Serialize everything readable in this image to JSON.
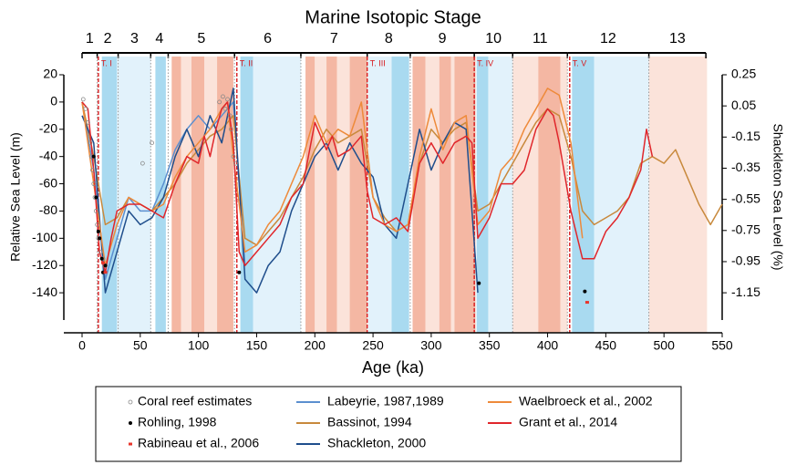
{
  "chart_data": {
    "type": "line",
    "title": "Marine Isotopic Stage",
    "x_label": "Age (ka)",
    "y_label": "Relative Sea Level (m)",
    "y2_label": "Shackleton Sea Level (%)",
    "xlim": [
      0,
      550
    ],
    "xticks": [
      0,
      50,
      100,
      150,
      200,
      250,
      300,
      350,
      400,
      450,
      500,
      550
    ],
    "ylim": [
      -160,
      20
    ],
    "yticks": [
      20,
      0,
      -20,
      -40,
      -60,
      -80,
      -100,
      -120,
      -140
    ],
    "y2lim": [
      -1.325,
      0.25
    ],
    "y2ticks": [
      0.25,
      0.05,
      -0.15,
      -0.35,
      -0.55,
      -0.75,
      -0.95,
      -1.15
    ],
    "stages": [
      {
        "label": "1",
        "start": 0,
        "end": 13
      },
      {
        "label": "2",
        "start": 13,
        "end": 31
      },
      {
        "label": "3",
        "start": 31,
        "end": 59
      },
      {
        "label": "4",
        "start": 59,
        "end": 74
      },
      {
        "label": "5",
        "start": 74,
        "end": 131
      },
      {
        "label": "6",
        "start": 131,
        "end": 188
      },
      {
        "label": "7",
        "start": 188,
        "end": 245
      },
      {
        "label": "8",
        "start": 245,
        "end": 282
      },
      {
        "label": "9",
        "start": 282,
        "end": 337
      },
      {
        "label": "10",
        "start": 337,
        "end": 370
      },
      {
        "label": "11",
        "start": 370,
        "end": 417
      },
      {
        "label": "12",
        "start": 417,
        "end": 487
      },
      {
        "label": "13",
        "start": 487,
        "end": 536
      }
    ],
    "terminations": [
      {
        "label": "T. I",
        "x": 14
      },
      {
        "label": "T. II",
        "x": 133
      },
      {
        "label": "T. III",
        "x": 245
      },
      {
        "label": "T. IV",
        "x": 337
      },
      {
        "label": "T. V",
        "x": 419
      }
    ],
    "bands": [
      {
        "start": 17,
        "end": 30,
        "color": "#a9daf0"
      },
      {
        "start": 30,
        "end": 59,
        "color": "#e2f2fb"
      },
      {
        "start": 63,
        "end": 72,
        "color": "#a9daf0"
      },
      {
        "start": 77,
        "end": 85,
        "color": "#f4b7a3"
      },
      {
        "start": 85,
        "end": 94,
        "color": "#fbe3da"
      },
      {
        "start": 94,
        "end": 105,
        "color": "#f4b7a3"
      },
      {
        "start": 105,
        "end": 116,
        "color": "#fbe3da"
      },
      {
        "start": 116,
        "end": 130,
        "color": "#f4b7a3"
      },
      {
        "start": 136,
        "end": 147,
        "color": "#a9daf0"
      },
      {
        "start": 147,
        "end": 188,
        "color": "#e2f2fb"
      },
      {
        "start": 192,
        "end": 200,
        "color": "#f4b7a3"
      },
      {
        "start": 200,
        "end": 210,
        "color": "#fbe3da"
      },
      {
        "start": 210,
        "end": 219,
        "color": "#f4b7a3"
      },
      {
        "start": 219,
        "end": 230,
        "color": "#fbe3da"
      },
      {
        "start": 230,
        "end": 245,
        "color": "#f4b7a3"
      },
      {
        "start": 246,
        "end": 266,
        "color": "#e2f2fb"
      },
      {
        "start": 266,
        "end": 281,
        "color": "#a9daf0"
      },
      {
        "start": 284,
        "end": 295,
        "color": "#f4b7a3"
      },
      {
        "start": 295,
        "end": 307,
        "color": "#fbe3da"
      },
      {
        "start": 307,
        "end": 317,
        "color": "#f4b7a3"
      },
      {
        "start": 317,
        "end": 320,
        "color": "#fbe3da"
      },
      {
        "start": 320,
        "end": 338,
        "color": "#f4b7a3"
      },
      {
        "start": 339,
        "end": 349,
        "color": "#a9daf0"
      },
      {
        "start": 349,
        "end": 370,
        "color": "#e2f2fb"
      },
      {
        "start": 370,
        "end": 392,
        "color": "#fbe3da"
      },
      {
        "start": 392,
        "end": 411,
        "color": "#f4b7a3"
      },
      {
        "start": 411,
        "end": 417,
        "color": "#fbe3da"
      },
      {
        "start": 421,
        "end": 440,
        "color": "#a9daf0"
      },
      {
        "start": 440,
        "end": 487,
        "color": "#e2f2fb"
      },
      {
        "start": 487,
        "end": 537,
        "color": "#fbe3da"
      }
    ],
    "series": [
      {
        "name": "Coral reef estimates",
        "type": "scatter",
        "marker": "circle",
        "color": "#888888",
        "x": [
          1,
          3,
          5,
          7,
          8,
          9,
          10,
          11,
          12,
          13,
          14,
          16,
          18,
          20,
          52,
          60,
          118,
          121,
          123,
          125,
          127,
          128,
          130,
          132
        ],
        "values": [
          2,
          -5,
          -15,
          -30,
          -40,
          -50,
          -60,
          -70,
          -80,
          -90,
          -100,
          -110,
          -115,
          -120,
          -45,
          -30,
          0,
          4,
          -5,
          2,
          -10,
          -20,
          -40,
          -45
        ]
      },
      {
        "name": "Rohling, 1998",
        "type": "scatter",
        "marker": "dot",
        "color": "#000000",
        "x": [
          10,
          12,
          14,
          15,
          17,
          18,
          20,
          135,
          341,
          432
        ],
        "values": [
          -40,
          -70,
          -95,
          -100,
          -115,
          -125,
          -120,
          -125,
          -133,
          -139
        ]
      },
      {
        "name": "Rabineau et al., 2006",
        "type": "scatter",
        "marker": "square",
        "color": "#e8352b",
        "x": [
          18,
          20,
          434
        ],
        "values": [
          -118,
          -125,
          -147
        ]
      },
      {
        "name": "Labeyrie, 1987,1989",
        "type": "line",
        "color": "#5b8fcf",
        "x": [
          0,
          10,
          20,
          30,
          40,
          50,
          60,
          70,
          80,
          90,
          100,
          110,
          120,
          130,
          140
        ],
        "values": [
          0,
          -50,
          -130,
          -100,
          -70,
          -80,
          -80,
          -60,
          -35,
          -20,
          -10,
          -20,
          -10,
          0,
          -120
        ]
      },
      {
        "name": "Bassinot, 1994",
        "type": "line",
        "color": "#c8893c",
        "x": [
          0,
          10,
          20,
          30,
          40,
          50,
          60,
          70,
          80,
          90,
          100,
          110,
          120,
          130,
          140,
          150,
          160,
          170,
          180,
          190,
          200,
          210,
          220,
          230,
          240,
          250,
          260,
          270,
          280,
          290,
          300,
          310,
          320,
          330,
          340,
          350,
          360,
          370,
          380,
          390,
          400,
          410,
          420,
          430,
          440,
          450,
          460,
          470,
          480,
          490,
          500,
          510,
          520,
          530,
          540,
          550
        ],
        "values": [
          0,
          -40,
          -90,
          -85,
          -70,
          -75,
          -80,
          -70,
          -60,
          -45,
          -35,
          -25,
          -20,
          -10,
          -100,
          -105,
          -95,
          -85,
          -70,
          -55,
          -35,
          -20,
          -30,
          -25,
          -20,
          -70,
          -85,
          -95,
          -90,
          -45,
          -20,
          -30,
          -20,
          -15,
          -80,
          -75,
          -60,
          -45,
          -30,
          -15,
          -5,
          -10,
          -40,
          -80,
          -90,
          -85,
          -80,
          -70,
          -45,
          -40,
          -45,
          -35,
          -55,
          -75,
          -90,
          -75
        ]
      },
      {
        "name": "Shackleton, 2000",
        "type": "line",
        "color": "#1f4e8c",
        "x": [
          0,
          10,
          20,
          30,
          40,
          50,
          60,
          70,
          80,
          90,
          100,
          110,
          120,
          130,
          140,
          150,
          160,
          170,
          180,
          190,
          200,
          210,
          220,
          230,
          240,
          250,
          260,
          270,
          280,
          290,
          300,
          310,
          320,
          330,
          340
        ],
        "values": [
          -10,
          -30,
          -140,
          -110,
          -80,
          -90,
          -85,
          -70,
          -40,
          -20,
          -40,
          -10,
          -30,
          10,
          -130,
          -140,
          -120,
          -110,
          -80,
          -60,
          -40,
          -30,
          -50,
          -30,
          -45,
          -55,
          -90,
          -100,
          -60,
          -20,
          -50,
          -30,
          -15,
          -20,
          -140
        ]
      },
      {
        "name": "Waelbroeck et al., 2002",
        "type": "line",
        "color": "#ee8a3a",
        "x": [
          0,
          10,
          20,
          30,
          40,
          50,
          60,
          70,
          80,
          90,
          100,
          110,
          120,
          125,
          130,
          140,
          150,
          160,
          170,
          180,
          190,
          200,
          210,
          220,
          230,
          240,
          250,
          260,
          270,
          280,
          290,
          300,
          310,
          320,
          330,
          340,
          350,
          360,
          370,
          380,
          390,
          400,
          410,
          420,
          430
        ],
        "values": [
          0,
          -60,
          -120,
          -90,
          -70,
          -75,
          -80,
          -75,
          -55,
          -40,
          -30,
          -20,
          -5,
          0,
          -40,
          -110,
          -105,
          -90,
          -80,
          -60,
          -40,
          -10,
          -30,
          -20,
          -25,
          0,
          -70,
          -90,
          -95,
          -90,
          -40,
          -5,
          -35,
          -15,
          -10,
          -90,
          -80,
          -50,
          -40,
          -20,
          -5,
          10,
          5,
          -30,
          -100
        ]
      },
      {
        "name": "Grant et al., 2014",
        "type": "line",
        "color": "#e0262b",
        "x": [
          0,
          5,
          10,
          15,
          20,
          25,
          30,
          40,
          50,
          60,
          70,
          80,
          90,
          100,
          105,
          110,
          115,
          120,
          125,
          130,
          135,
          140,
          150,
          160,
          170,
          180,
          190,
          200,
          210,
          215,
          220,
          230,
          240,
          245,
          250,
          260,
          270,
          280,
          290,
          300,
          310,
          320,
          330,
          335,
          340,
          350,
          360,
          370,
          380,
          390,
          400,
          405,
          410,
          420,
          430,
          440,
          450,
          460,
          470,
          480,
          485,
          490
        ],
        "values": [
          0,
          -5,
          -50,
          -110,
          -125,
          -100,
          -80,
          -75,
          -75,
          -80,
          -85,
          -60,
          -40,
          -45,
          -25,
          -40,
          -20,
          -5,
          0,
          -30,
          -110,
          -120,
          -110,
          -100,
          -90,
          -70,
          -60,
          -15,
          -35,
          -25,
          -40,
          -35,
          -25,
          -65,
          -85,
          -90,
          -85,
          -95,
          -45,
          -30,
          -45,
          -30,
          -25,
          -30,
          -100,
          -85,
          -60,
          -60,
          -50,
          -20,
          -5,
          -10,
          -30,
          -80,
          -115,
          -115,
          -95,
          -85,
          -70,
          -50,
          -20,
          -40
        ]
      }
    ]
  }
}
